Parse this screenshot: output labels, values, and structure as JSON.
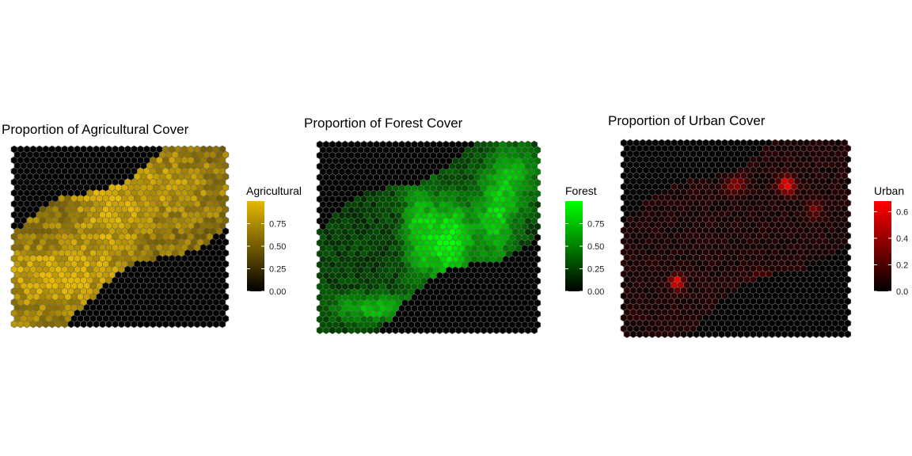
{
  "chart_data": [
    {
      "type": "heatmap",
      "subtype": "hexbin-map",
      "title": "Proportion of Agricultural Cover",
      "legend_title": "Agricultural",
      "legend_ticks": [
        "0.00",
        "0.25",
        "0.50",
        "0.75"
      ],
      "legend_tick_values": [
        0,
        0.25,
        0.5,
        0.75
      ],
      "value_range": [
        0,
        1
      ],
      "color_low": "#000000",
      "color_high": "#e6b800",
      "legend_placement": "right",
      "grid": false,
      "pattern": "agri"
    },
    {
      "type": "heatmap",
      "subtype": "hexbin-map",
      "title": "Proportion of Forest Cover",
      "legend_title": "Forest",
      "legend_ticks": [
        "0.00",
        "0.25",
        "0.50",
        "0.75"
      ],
      "legend_tick_values": [
        0,
        0.25,
        0.5,
        0.75
      ],
      "value_range": [
        0,
        1
      ],
      "color_low": "#000000",
      "color_high": "#00ff00",
      "legend_placement": "right",
      "grid": false,
      "pattern": "forest"
    },
    {
      "type": "heatmap",
      "subtype": "hexbin-map",
      "title": "Proportion of Urban Cover",
      "legend_title": "Urban",
      "legend_ticks": [
        "0.0",
        "0.2",
        "0.4",
        "0.6"
      ],
      "legend_tick_values": [
        0,
        0.2,
        0.4,
        0.6
      ],
      "value_range": [
        0,
        0.68
      ],
      "color_low": "#000000",
      "color_high": "#ff0000",
      "legend_placement": "right",
      "grid": false,
      "pattern": "urban"
    }
  ]
}
